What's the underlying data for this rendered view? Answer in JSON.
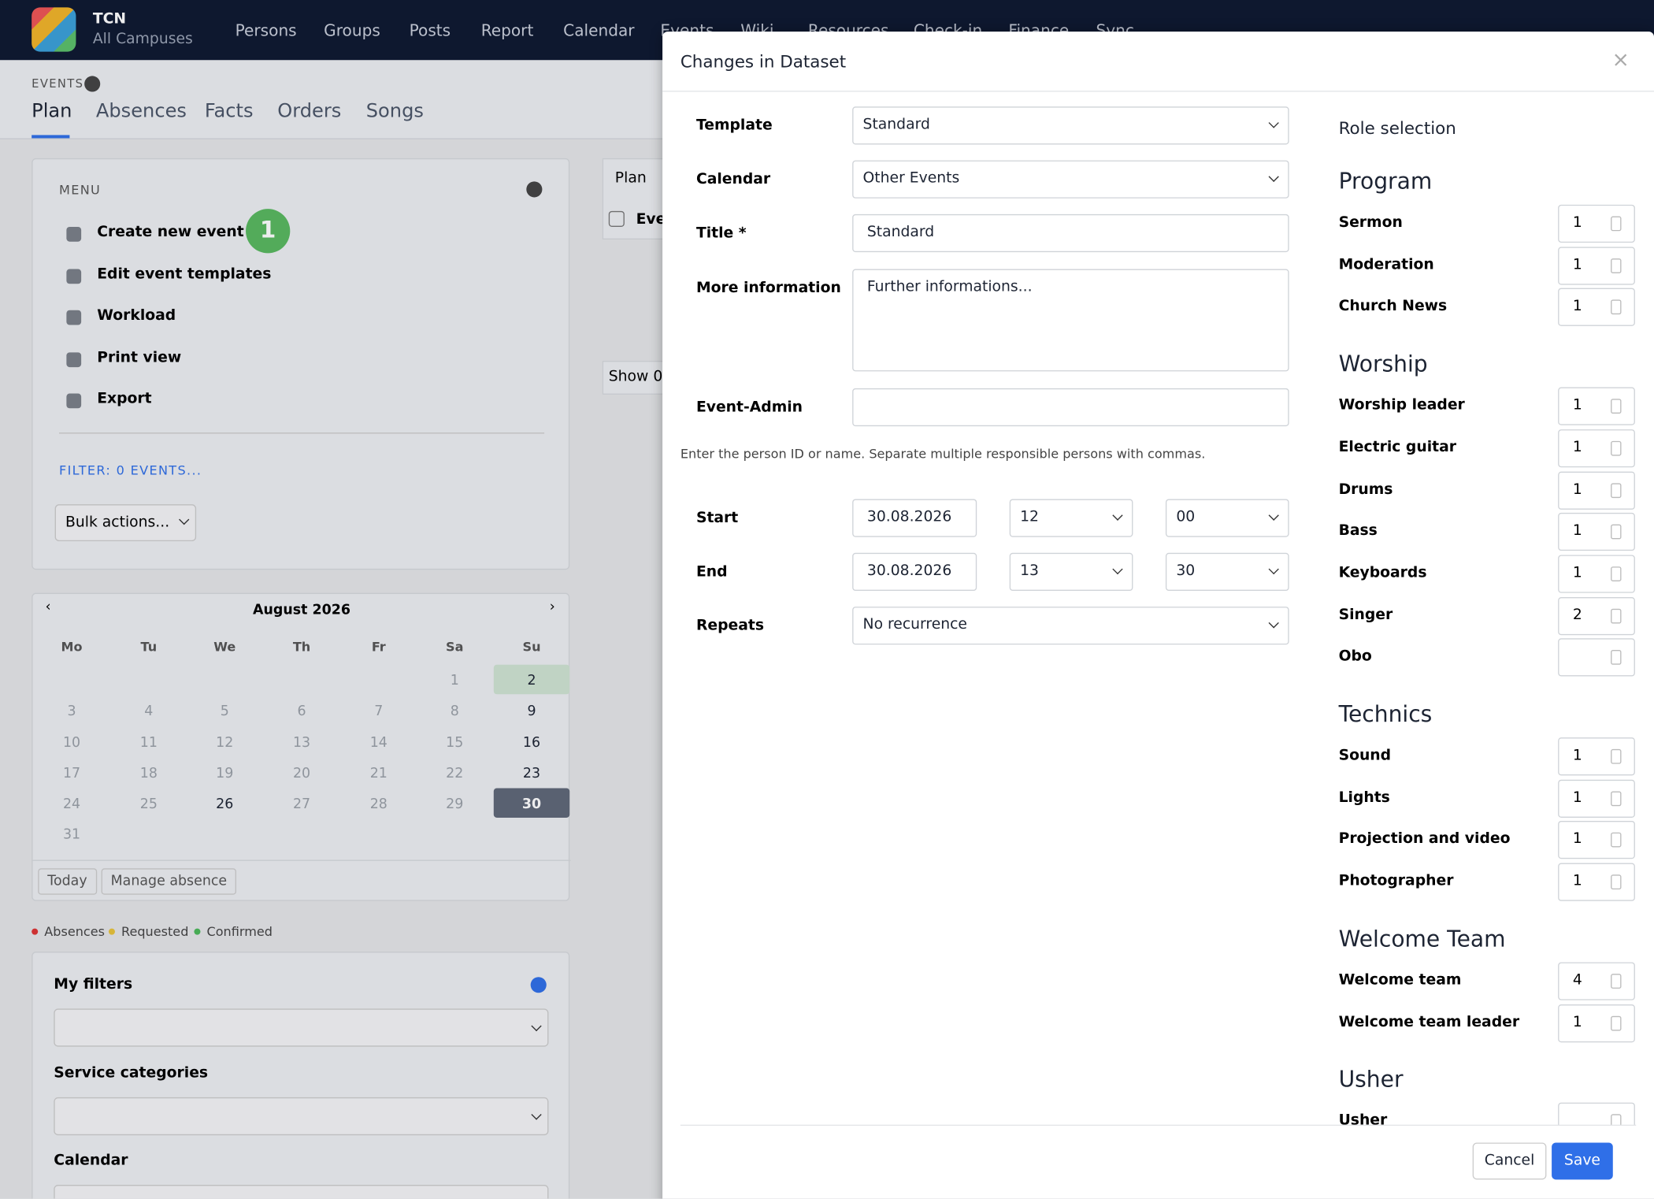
{
  "header": {
    "brand": "TCN",
    "campus": "All Campuses",
    "nav": [
      "Persons",
      "Groups",
      "Posts",
      "Report",
      "Calendar",
      "Events",
      "Wiki",
      "Resources",
      "Check-in",
      "Finance",
      "Sync"
    ]
  },
  "page": {
    "section": "EVENTS",
    "tabs": [
      "Plan",
      "Absences",
      "Facts",
      "Orders",
      "Songs"
    ],
    "menu": {
      "title": "MENU",
      "items": [
        "Create new event",
        "Edit event templates",
        "Workload",
        "Print view",
        "Export"
      ],
      "badge": "1",
      "filter": "FILTER: 0 EVENTS...",
      "bulk": "Bulk actions..."
    },
    "calendar": {
      "month": "August 2026",
      "weekdays": [
        "Mo",
        "Tu",
        "We",
        "Th",
        "Fr",
        "Sa",
        "Su"
      ],
      "weeks": [
        [
          null,
          null,
          null,
          null,
          null,
          "1",
          "2"
        ],
        [
          "3",
          "4",
          "5",
          "6",
          "7",
          "8",
          "9"
        ],
        [
          "10",
          "11",
          "12",
          "13",
          "14",
          "15",
          "16"
        ],
        [
          "17",
          "18",
          "19",
          "20",
          "21",
          "22",
          "23"
        ],
        [
          "24",
          "25",
          "26",
          "27",
          "28",
          "29",
          "30"
        ],
        [
          "31"
        ]
      ],
      "buttons": [
        "Today",
        "Manage absence"
      ]
    },
    "legend": [
      "Absences",
      "Requested",
      "Confirmed"
    ],
    "filters": [
      "My filters",
      "Service categories",
      "Calendar"
    ],
    "background": {
      "panel": "Plan",
      "check": "Events",
      "show": "Show 0"
    }
  },
  "modal": {
    "title": "Changes in Dataset",
    "close": "×",
    "fields": {
      "template": {
        "label": "Template",
        "value": "Standard"
      },
      "calendar": {
        "label": "Calendar",
        "value": "Other Events"
      },
      "title": {
        "label": "Title *",
        "value": "Standard"
      },
      "info": {
        "label": "More information",
        "value": "Further informations..."
      },
      "admin": {
        "label": "Event-Admin"
      },
      "hint": "Enter the person ID or name. Separate multiple responsible persons with commas.",
      "start": {
        "label": "Start",
        "date": "30.08.2026",
        "hour": "12",
        "minute": "00"
      },
      "end": {
        "label": "End",
        "date": "30.08.2026",
        "hour": "13",
        "minute": "30"
      },
      "repeats": {
        "label": "Repeats",
        "value": "No recurrence"
      }
    },
    "roles": {
      "title": "Role selection",
      "groups": [
        {
          "name": "Program",
          "roles": [
            {
              "name": "Sermon",
              "count": 1
            },
            {
              "name": "Moderation",
              "count": 1
            },
            {
              "name": "Church News",
              "count": 1
            }
          ]
        },
        {
          "name": "Worship",
          "roles": [
            {
              "name": "Worship leader",
              "count": 1
            },
            {
              "name": "Electric guitar",
              "count": 1
            },
            {
              "name": "Drums",
              "count": 1
            },
            {
              "name": "Bass",
              "count": 1
            },
            {
              "name": "Keyboards",
              "count": 1
            },
            {
              "name": "Singer",
              "count": 2
            },
            {
              "name": "Obo"
            }
          ]
        },
        {
          "name": "Technics",
          "roles": [
            {
              "name": "Sound",
              "count": 1
            },
            {
              "name": "Lights",
              "count": 1
            },
            {
              "name": "Projection and video",
              "count": 1
            },
            {
              "name": "Photographer",
              "count": 1
            }
          ]
        },
        {
          "name": "Welcome Team",
          "roles": [
            {
              "name": "Welcome team",
              "count": 4
            },
            {
              "name": "Welcome team leader",
              "count": 1
            }
          ]
        },
        {
          "name": "Usher",
          "roles": [
            {
              "name": "Usher"
            }
          ]
        }
      ]
    },
    "buttons": {
      "cancel": "Cancel",
      "save": "Save"
    }
  }
}
